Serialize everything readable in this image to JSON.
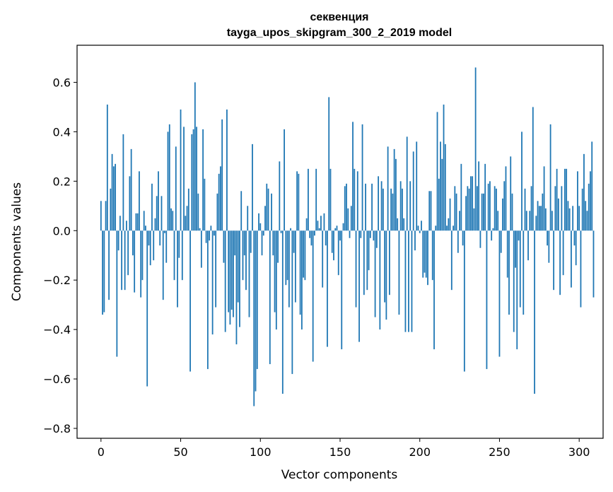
{
  "chart_data": {
    "type": "bar",
    "title_line1": "секвенция",
    "title_line2": "tayga_upos_skipgram_300_2_2019 model",
    "xlabel": "Vector components",
    "ylabel": "Components values",
    "xlim": [
      -15,
      315
    ],
    "ylim": [
      -0.84,
      0.75
    ],
    "xticks": [
      0,
      50,
      100,
      150,
      200,
      250,
      300
    ],
    "xtick_labels": [
      "0",
      "50",
      "100",
      "150",
      "200",
      "250",
      "300"
    ],
    "yticks": [
      -0.8,
      -0.6,
      -0.4,
      -0.2,
      0.0,
      0.2,
      0.4,
      0.6
    ],
    "ytick_labels": [
      "−0.8",
      "−0.6",
      "−0.4",
      "−0.2",
      "0.0",
      "0.2",
      "0.4",
      "0.6"
    ],
    "bar_color": "#1f77b4",
    "values": [
      0.12,
      -0.34,
      -0.33,
      0.12,
      0.51,
      -0.28,
      0.17,
      0.31,
      0.26,
      0.27,
      -0.51,
      -0.08,
      0.06,
      -0.24,
      0.39,
      -0.24,
      0.04,
      -0.18,
      0.22,
      0.33,
      -0.1,
      -0.25,
      0.07,
      0.07,
      0.24,
      -0.27,
      -0.2,
      0.08,
      0.02,
      -0.63,
      -0.06,
      -0.14,
      0.19,
      -0.12,
      0.05,
      0.14,
      0.24,
      -0.06,
      0.14,
      -0.28,
      -0.01,
      -0.13,
      0.4,
      0.43,
      0.09,
      0.08,
      -0.2,
      0.34,
      -0.31,
      -0.11,
      0.49,
      -0.2,
      0.42,
      0.06,
      0.1,
      0.17,
      -0.57,
      0.39,
      0.41,
      0.6,
      0.42,
      0.15,
      0.01,
      -0.15,
      0.41,
      0.21,
      -0.05,
      -0.56,
      -0.04,
      0.02,
      -0.42,
      -0.02,
      -0.31,
      0.15,
      0.23,
      0.26,
      0.45,
      -0.13,
      -0.41,
      0.49,
      -0.33,
      -0.38,
      -0.32,
      -0.35,
      -0.1,
      -0.46,
      -0.29,
      -0.39,
      0.16,
      -0.2,
      -0.1,
      -0.24,
      0.1,
      -0.35,
      -0.09,
      0.35,
      -0.71,
      -0.65,
      -0.56,
      0.07,
      0.03,
      -0.1,
      -0.02,
      0.1,
      0.19,
      0.17,
      -0.54,
      0.15,
      -0.1,
      -0.33,
      -0.4,
      -0.13,
      0.28,
      -0.01,
      -0.66,
      0.41,
      -0.22,
      -0.2,
      -0.31,
      0.01,
      -0.58,
      -0.09,
      -0.29,
      0.24,
      0.23,
      -0.34,
      -0.4,
      -0.19,
      -0.2,
      0.05,
      0.25,
      -0.03,
      -0.06,
      -0.53,
      -0.02,
      0.25,
      0.04,
      0.01,
      0.06,
      -0.23,
      0.07,
      -0.06,
      -0.47,
      0.54,
      0.25,
      -0.09,
      -0.12,
      0.01,
      0.02,
      -0.18,
      -0.04,
      -0.48,
      0.03,
      0.18,
      0.19,
      0.09,
      -0.03,
      0.1,
      0.44,
      0.25,
      -0.31,
      0.24,
      -0.45,
      -0.03,
      0.43,
      -0.26,
      0.19,
      -0.24,
      -0.16,
      -0.03,
      0.19,
      -0.04,
      -0.35,
      -0.07,
      0.22,
      -0.4,
      0.2,
      0.17,
      -0.29,
      -0.36,
      0.34,
      -0.26,
      0.17,
      0.15,
      0.33,
      0.29,
      0.05,
      -0.34,
      0.2,
      0.17,
      0.05,
      -0.41,
      0.38,
      -0.41,
      0.2,
      -0.41,
      0.32,
      -0.08,
      0.36,
      0.02,
      -0.01,
      0.04,
      -0.19,
      -0.17,
      -0.19,
      -0.22,
      0.16,
      0.16,
      -0.2,
      -0.48,
      0.02,
      0.48,
      0.21,
      0.36,
      0.29,
      0.51,
      0.35,
      0.02,
      0.05,
      0.13,
      -0.24,
      0.02,
      0.18,
      0.15,
      -0.09,
      0.08,
      0.27,
      -0.06,
      -0.57,
      0.14,
      0.18,
      0.17,
      0.22,
      0.22,
      0.09,
      0.66,
      0.18,
      0.28,
      -0.07,
      0.15,
      0.15,
      0.27,
      -0.56,
      0.19,
      0.2,
      -0.04,
      0.01,
      0.18,
      0.17,
      0.08,
      -0.51,
      -0.09,
      0.13,
      0.2,
      0.26,
      -0.19,
      -0.34,
      0.3,
      0.15,
      -0.41,
      -0.15,
      -0.48,
      -0.04,
      -0.31,
      0.4,
      -0.34,
      0.17,
      0.08,
      -0.12,
      0.08,
      0.18,
      0.5,
      -0.66,
      0.06,
      0.12,
      0.1,
      0.1,
      0.15,
      0.26,
      0.09,
      -0.06,
      -0.13,
      0.43,
      0.08,
      -0.24,
      0.18,
      0.25,
      0.13,
      -0.26,
      0.18,
      -0.18,
      0.25,
      0.25,
      0.12,
      0.09,
      -0.23,
      0.1,
      -0.06,
      -0.14,
      0.24,
      0.1,
      -0.31,
      0.17,
      0.31,
      0.12,
      0.08,
      0.19,
      0.24,
      0.36,
      -0.27
    ]
  }
}
